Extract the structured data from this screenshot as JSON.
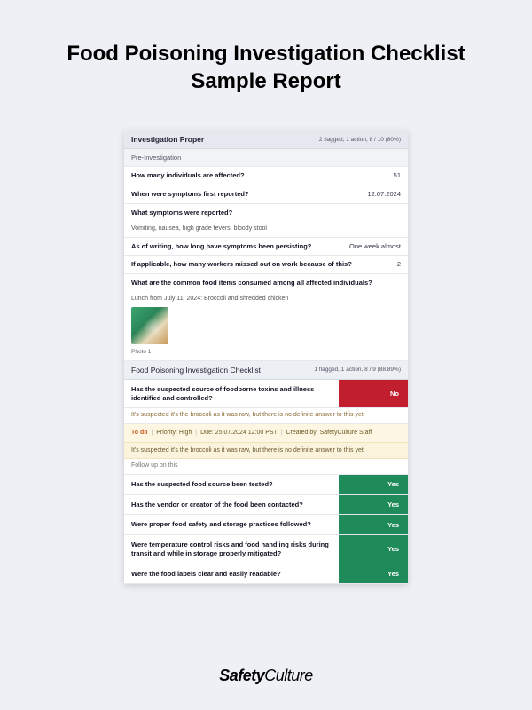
{
  "page": {
    "title": "Food Poisoning Investigation Checklist Sample Report"
  },
  "brand": {
    "bold": "Safety",
    "light": "Culture"
  },
  "report": {
    "section": {
      "title": "Investigation Proper",
      "meta": "2 flagged, 1 action, 8 / 10 (80%)"
    },
    "pre_section_label": "Pre-Investigation",
    "qa": [
      {
        "q": "How many individuals are affected?",
        "a": "51"
      },
      {
        "q": "When were symptoms first reported?",
        "a": "12.07.2024"
      }
    ],
    "symptoms": {
      "q": "What symptoms were reported?",
      "detail": "Vomiting, nausea, high grade fevers, bloody stool"
    },
    "persisting": {
      "q": "As of writing, how long have symptoms been persisting?",
      "a": "One week almost"
    },
    "missed_work": {
      "q": "If applicable, how many workers missed out on work because of this?",
      "a": "2"
    },
    "common_food": {
      "q": "What are the common food items consumed among all affected individuals?",
      "detail": "Lunch from July 11, 2024: Broccoli and shredded chicken",
      "photo_label": "Photo 1"
    },
    "checklist_header": {
      "title": "Food Poisoning Investigation Checklist",
      "meta": "1 flagged, 1 action, 8 / 9 (88.89%)"
    },
    "checklist_no": {
      "q": "Has the suspected source of foodborne toxins and illness identified and controlled?",
      "a": "No",
      "explain": "It's suspected it's the broccoli as it was raw, but there is no definite answer to this yet"
    },
    "todo": {
      "label": "To do",
      "priority_label": "Priority: High",
      "due_label": "Due: 25.07.2024 12:00 PST",
      "created_label": "Created by: SafetyCulture Staff",
      "note": "It's suspected it's the broccoli as it was raw, but there is no definite answer to this yet",
      "followup": "Follow up on this"
    },
    "checklist_yes": [
      {
        "q": "Has the suspected food source been tested?",
        "a": "Yes"
      },
      {
        "q": "Has the vendor or creator of the food been contacted?",
        "a": "Yes"
      },
      {
        "q": "Were proper food safety and storage practices followed?",
        "a": "Yes"
      },
      {
        "q": "Were temperature control risks and food handling risks during transit and while in storage properly mitigated?",
        "a": "Yes"
      },
      {
        "q": "Were the food labels clear and easily readable?",
        "a": "Yes"
      }
    ],
    "colors": {
      "page_bg": "#eef0f5",
      "card_bg": "#ffffff",
      "section_head_bg": "#e5e8ef",
      "subhead_bg": "#f2f3f7",
      "answer_no_bg": "#c21f2e",
      "answer_yes_bg": "#1f8a5a",
      "note_yellow_bg": "#fdf6e3",
      "note_cream_bg": "#fbf3dc",
      "todo_text": "#c75a1d"
    }
  }
}
